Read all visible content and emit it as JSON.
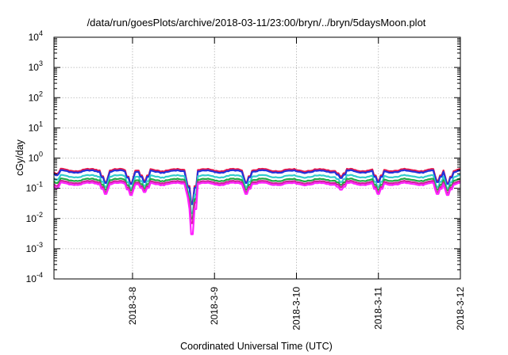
{
  "chart_data": {
    "type": "line",
    "title": "/data/run/goesPlots/archive/2018-03-11/23:00/bryn/../bryn/5daysMoon.plot",
    "xlabel": "Coordinated Universal Time (UTC)",
    "ylabel": "cGy/day",
    "yscale": "log",
    "ylim": [
      0.0001,
      10000
    ],
    "y_ticks": [
      {
        "base": "10",
        "exp": "-4",
        "value": 0.0001
      },
      {
        "base": "10",
        "exp": "-3",
        "value": 0.001
      },
      {
        "base": "10",
        "exp": "-2",
        "value": 0.01
      },
      {
        "base": "10",
        "exp": "-1",
        "value": 0.1
      },
      {
        "base": "10",
        "exp": "0",
        "value": 1
      },
      {
        "base": "10",
        "exp": "1",
        "value": 10
      },
      {
        "base": "10",
        "exp": "2",
        "value": 100
      },
      {
        "base": "10",
        "exp": "3",
        "value": 1000
      },
      {
        "base": "10",
        "exp": "4",
        "value": 10000
      }
    ],
    "xlim": [
      "2018-03-07T01:00",
      "2018-03-12T00:00"
    ],
    "x_ticks": [
      {
        "label": "2018-3-8",
        "value": "2018-03-08"
      },
      {
        "label": "2018-3-9",
        "value": "2018-03-09"
      },
      {
        "label": "2018-3-10",
        "value": "2018-03-10"
      },
      {
        "label": "2018-3-11",
        "value": "2018-03-11"
      },
      {
        "label": "2018-3-12",
        "value": "2018-03-12"
      }
    ],
    "grid": true,
    "series": [
      {
        "color": "#e8174a",
        "baseline": 0.4,
        "dips": [
          {
            "time": "2018-03-07T01:30",
            "value": 0.3
          },
          {
            "time": "2018-03-07T16:00",
            "value": 0.16
          },
          {
            "time": "2018-03-07T23:30",
            "value": 0.15
          },
          {
            "time": "2018-03-08T03:30",
            "value": 0.18
          },
          {
            "time": "2018-03-08T16:30",
            "value": 0.12
          },
          {
            "time": "2018-03-08T17:30",
            "value": 0.035
          },
          {
            "time": "2018-03-09T09:30",
            "value": 0.16
          },
          {
            "time": "2018-03-10T13:00",
            "value": 0.25
          },
          {
            "time": "2018-03-11T00:00",
            "value": 0.18
          },
          {
            "time": "2018-03-11T17:30",
            "value": 0.18
          },
          {
            "time": "2018-03-11T20:30",
            "value": 0.15
          }
        ]
      },
      {
        "color": "#2233dd",
        "baseline": 0.36,
        "dips": [
          {
            "time": "2018-03-07T01:30",
            "value": 0.27
          },
          {
            "time": "2018-03-07T16:00",
            "value": 0.15
          },
          {
            "time": "2018-03-07T23:30",
            "value": 0.14
          },
          {
            "time": "2018-03-08T03:30",
            "value": 0.16
          },
          {
            "time": "2018-03-08T16:30",
            "value": 0.11
          },
          {
            "time": "2018-03-08T17:30",
            "value": 0.03
          },
          {
            "time": "2018-03-09T09:30",
            "value": 0.15
          },
          {
            "time": "2018-03-10T13:00",
            "value": 0.22
          },
          {
            "time": "2018-03-11T00:00",
            "value": 0.16
          },
          {
            "time": "2018-03-11T17:30",
            "value": 0.16
          },
          {
            "time": "2018-03-11T20:30",
            "value": 0.14
          }
        ]
      },
      {
        "color": "#33cccc",
        "baseline": 0.25,
        "dips": [
          {
            "time": "2018-03-07T01:30",
            "value": 0.19
          },
          {
            "time": "2018-03-07T16:00",
            "value": 0.11
          },
          {
            "time": "2018-03-07T23:30",
            "value": 0.1
          },
          {
            "time": "2018-03-08T03:30",
            "value": 0.12
          },
          {
            "time": "2018-03-08T16:30",
            "value": 0.08
          },
          {
            "time": "2018-03-08T17:30",
            "value": 0.015
          },
          {
            "time": "2018-03-09T09:30",
            "value": 0.11
          },
          {
            "time": "2018-03-10T13:00",
            "value": 0.16
          },
          {
            "time": "2018-03-11T00:00",
            "value": 0.11
          },
          {
            "time": "2018-03-11T17:30",
            "value": 0.11
          },
          {
            "time": "2018-03-11T20:30",
            "value": 0.1
          }
        ]
      },
      {
        "color": "#22aa44",
        "baseline": 0.19,
        "dips": [
          {
            "time": "2018-03-07T01:30",
            "value": 0.15
          },
          {
            "time": "2018-03-07T16:00",
            "value": 0.09
          },
          {
            "time": "2018-03-07T23:30",
            "value": 0.085
          },
          {
            "time": "2018-03-08T03:30",
            "value": 0.1
          },
          {
            "time": "2018-03-08T16:30",
            "value": 0.07
          },
          {
            "time": "2018-03-08T17:30",
            "value": 0.01
          },
          {
            "time": "2018-03-09T09:30",
            "value": 0.09
          },
          {
            "time": "2018-03-10T13:00",
            "value": 0.13
          },
          {
            "time": "2018-03-11T00:00",
            "value": 0.09
          },
          {
            "time": "2018-03-11T17:30",
            "value": 0.09
          },
          {
            "time": "2018-03-11T20:30",
            "value": 0.085
          }
        ]
      },
      {
        "color": "#cc2299",
        "baseline": 0.16,
        "dips": [
          {
            "time": "2018-03-07T01:30",
            "value": 0.12
          },
          {
            "time": "2018-03-07T16:00",
            "value": 0.075
          },
          {
            "time": "2018-03-07T23:30",
            "value": 0.07
          },
          {
            "time": "2018-03-08T03:30",
            "value": 0.085
          },
          {
            "time": "2018-03-08T16:30",
            "value": 0.06
          },
          {
            "time": "2018-03-08T17:30",
            "value": 0.007
          },
          {
            "time": "2018-03-09T09:30",
            "value": 0.075
          },
          {
            "time": "2018-03-10T13:00",
            "value": 0.11
          },
          {
            "time": "2018-03-11T00:00",
            "value": 0.075
          },
          {
            "time": "2018-03-11T17:30",
            "value": 0.075
          },
          {
            "time": "2018-03-11T20:30",
            "value": 0.07
          }
        ]
      },
      {
        "color": "#ff22ff",
        "baseline": 0.14,
        "dips": [
          {
            "time": "2018-03-07T01:30",
            "value": 0.1
          },
          {
            "time": "2018-03-07T16:00",
            "value": 0.065
          },
          {
            "time": "2018-03-07T23:30",
            "value": 0.06
          },
          {
            "time": "2018-03-08T03:30",
            "value": 0.075
          },
          {
            "time": "2018-03-08T16:30",
            "value": 0.05
          },
          {
            "time": "2018-03-08T17:30",
            "value": 0.003
          },
          {
            "time": "2018-03-09T09:30",
            "value": 0.065
          },
          {
            "time": "2018-03-10T13:00",
            "value": 0.09
          },
          {
            "time": "2018-03-11T00:00",
            "value": 0.065
          },
          {
            "time": "2018-03-11T17:30",
            "value": 0.065
          },
          {
            "time": "2018-03-11T20:30",
            "value": 0.06
          }
        ]
      }
    ]
  }
}
